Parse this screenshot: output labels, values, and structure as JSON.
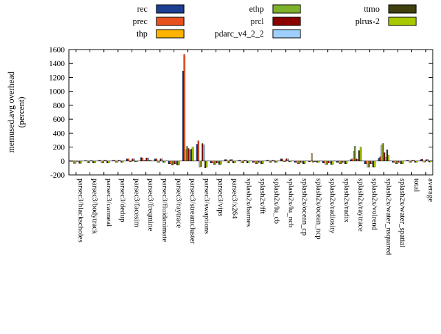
{
  "chart_data": {
    "type": "bar",
    "title": "",
    "ylabel_lines": [
      "memused.avg overhead",
      "(percent)"
    ],
    "ylim": [
      -200,
      1600
    ],
    "ytick_step": 200,
    "grid": false,
    "legend_position": "top",
    "legend_columns": [
      [
        "rec",
        "prec",
        "thp"
      ],
      [
        "ethp",
        "prcl",
        "pdarc_v4_2_2"
      ],
      [
        "ttmo",
        "plrus-2"
      ]
    ],
    "categories": [
      "parsec3/blackscholes",
      "parsec3/bodytrack",
      "parsec3/canneal",
      "parsec3/dedup",
      "parsec3/facesim",
      "parsec3/freqmine",
      "parsec3/fluidanimate",
      "parsec3/raytrace",
      "parsec3/streamcluster",
      "parsec3/swaptions",
      "parsec3/vips",
      "parsec3/x264",
      "splash2x/barnes",
      "splash2x/fft",
      "splash2x/lu_cb",
      "splash2x/lu_ncb",
      "splash2x/ocean_cp",
      "splash2x/ocean_ncp",
      "splash2x/radiosity",
      "splash2x/radix",
      "splash2x/raytrace",
      "splash2x/volrend",
      "splash2x/water_nsquared",
      "splash2x/water_spatial",
      "total",
      "average"
    ],
    "series": [
      {
        "name": "rec",
        "color": "#1c3f94",
        "values": [
          -5,
          5,
          10,
          10,
          30,
          50,
          30,
          -40,
          1290,
          240,
          -30,
          20,
          10,
          -20,
          10,
          30,
          -20,
          -10,
          -30,
          -20,
          20,
          -40,
          40,
          -20,
          10,
          20
        ]
      },
      {
        "name": "prec",
        "color": "#e8501e",
        "values": [
          -5,
          5,
          10,
          10,
          30,
          45,
          30,
          -40,
          1530,
          290,
          -30,
          20,
          10,
          -20,
          10,
          30,
          -20,
          -10,
          -30,
          -20,
          30,
          -40,
          60,
          -20,
          10,
          25
        ]
      },
      {
        "name": "thp",
        "color": "#ffb300",
        "values": [
          -35,
          -30,
          -30,
          -20,
          -10,
          10,
          -20,
          -60,
          160,
          -90,
          -50,
          -30,
          -30,
          -40,
          -20,
          -10,
          -40,
          110,
          -50,
          -40,
          140,
          -90,
          230,
          -40,
          -20,
          -15
        ]
      },
      {
        "name": "ethp",
        "color": "#7cb32a",
        "values": [
          -35,
          -30,
          -30,
          -20,
          -10,
          10,
          -20,
          -60,
          210,
          -80,
          -50,
          -30,
          -30,
          -40,
          -20,
          -10,
          -40,
          -20,
          -50,
          -40,
          210,
          -90,
          250,
          -40,
          -20,
          -15
        ]
      },
      {
        "name": "prcl",
        "color": "#8b0000",
        "values": [
          -5,
          5,
          10,
          10,
          30,
          45,
          30,
          -40,
          180,
          250,
          -30,
          20,
          10,
          -20,
          10,
          30,
          -20,
          -10,
          -30,
          -20,
          30,
          -40,
          120,
          -20,
          10,
          20
        ]
      },
      {
        "name": "pdarc_v4_2_2",
        "color": "#9ecfff",
        "values": [
          -5,
          5,
          10,
          10,
          30,
          45,
          30,
          -40,
          150,
          230,
          -30,
          20,
          10,
          -20,
          10,
          30,
          -20,
          -10,
          -30,
          -20,
          20,
          -40,
          50,
          -20,
          10,
          20
        ]
      },
      {
        "name": "ttmo",
        "color": "#3f3f10",
        "values": [
          -35,
          -30,
          -30,
          -20,
          -10,
          10,
          -20,
          -60,
          170,
          -100,
          -50,
          -30,
          -30,
          -40,
          -20,
          -10,
          -40,
          -20,
          -50,
          -40,
          150,
          -90,
          160,
          -40,
          -20,
          -15
        ]
      },
      {
        "name": "plrus-2",
        "color": "#a8c800",
        "values": [
          -35,
          -30,
          -30,
          -20,
          -10,
          10,
          -20,
          -60,
          200,
          -90,
          -50,
          -30,
          -30,
          -40,
          -20,
          -10,
          -40,
          -20,
          -50,
          -40,
          200,
          -90,
          80,
          -40,
          -20,
          -15
        ]
      }
    ]
  }
}
